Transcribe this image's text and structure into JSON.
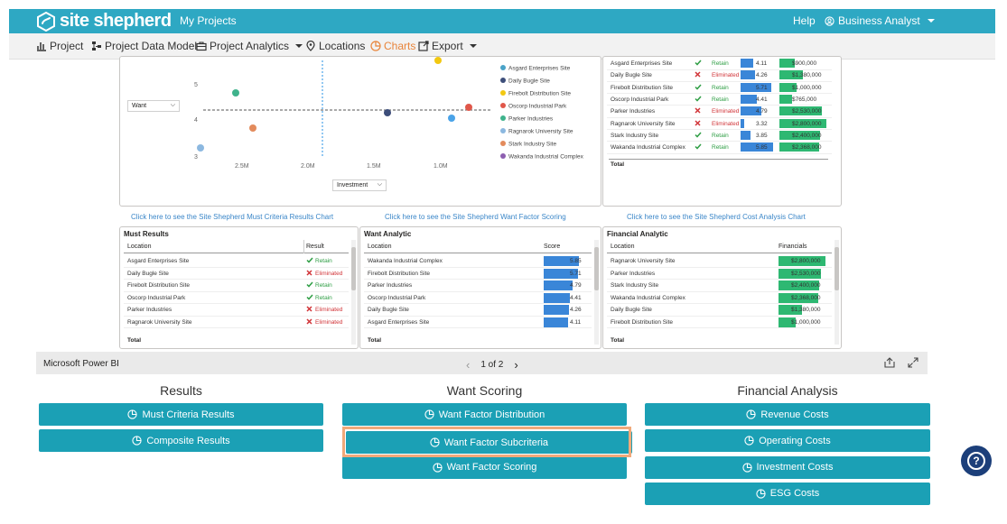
{
  "header": {
    "brand": "site shepherd",
    "my_projects": "My Projects",
    "help": "Help",
    "user": "Business Analyst"
  },
  "nav": {
    "items": [
      {
        "label": "Project",
        "icon": "bar-chart-icon"
      },
      {
        "label": "Project Data Model",
        "icon": "data-model-icon"
      },
      {
        "label": "Project Analytics",
        "icon": "briefcase-icon",
        "dropdown": true
      },
      {
        "label": "Locations",
        "icon": "map-pin-icon"
      },
      {
        "label": "Charts",
        "icon": "pie-chart-icon",
        "active": true
      },
      {
        "label": "Export",
        "icon": "external-link-icon",
        "dropdown": true
      }
    ]
  },
  "scatter": {
    "y_selector": "Want",
    "x_selector": "Investment",
    "y_ticks": [
      "5",
      "4",
      "3"
    ],
    "x_ticks": [
      "2.5M",
      "2.0M",
      "1.5M",
      "1.0M"
    ],
    "legend": [
      {
        "name": "Asgard Enterprises Site",
        "color": "#4aa3c8"
      },
      {
        "name": "Daily Bugle Site",
        "color": "#3d4e7a"
      },
      {
        "name": "Firebolt Distribution Site",
        "color": "#f2c811"
      },
      {
        "name": "Oscorp Industrial Park",
        "color": "#e0574a"
      },
      {
        "name": "Parker Industries",
        "color": "#3fb38c"
      },
      {
        "name": "Ragnarok University Site",
        "color": "#8cb8e0"
      },
      {
        "name": "Stark Industry Site",
        "color": "#e38b5c"
      },
      {
        "name": "Wakanda Industrial Complex",
        "color": "#8d5fb0"
      }
    ]
  },
  "top_right": {
    "rows": [
      {
        "location": "Asgard Enterprises Site",
        "status": "Retain",
        "score": "4.11",
        "fin": "$900,000"
      },
      {
        "location": "Daily Bugle Site",
        "status": "Eliminated",
        "score": "4.26",
        "fin": "$1,380,000"
      },
      {
        "location": "Firebolt Distribution Site",
        "status": "Retain",
        "score": "5.71",
        "fin": "$1,000,000"
      },
      {
        "location": "Oscorp Industrial Park",
        "status": "Retain",
        "score": "4.41",
        "fin": "$765,000"
      },
      {
        "location": "Parker Industries",
        "status": "Eliminated",
        "score": "4.79",
        "fin": "$2,530,000"
      },
      {
        "location": "Ragnarok University Site",
        "status": "Eliminated",
        "score": "3.32",
        "fin": "$2,800,000"
      },
      {
        "location": "Stark Industry Site",
        "status": "Retain",
        "score": "3.85",
        "fin": "$2,400,000"
      },
      {
        "location": "Wakanda Industrial Complex",
        "status": "Retain",
        "score": "5.85",
        "fin": "$2,368,000"
      }
    ],
    "total": "Total"
  },
  "links": {
    "must": "Click here to see the Site Shepherd Must Criteria Results Chart",
    "want": "Click here to see the Site Shepherd Want Factor Scoring",
    "cost": "Click here to see the Site Shepherd Cost Analysis Chart"
  },
  "must_results": {
    "title": "Must Results",
    "col_location": "Location",
    "col_result": "Result",
    "rows": [
      {
        "location": "Asgard Enterprises Site",
        "result": "Retain"
      },
      {
        "location": "Daily Bugle Site",
        "result": "Eliminated"
      },
      {
        "location": "Firebolt Distribution Site",
        "result": "Retain"
      },
      {
        "location": "Oscorp Industrial Park",
        "result": "Retain"
      },
      {
        "location": "Parker Industries",
        "result": "Eliminated"
      },
      {
        "location": "Ragnarok University Site",
        "result": "Eliminated"
      }
    ],
    "total": "Total"
  },
  "want_analytic": {
    "title": "Want Analytic",
    "col_location": "Location",
    "col_score": "Score",
    "rows": [
      {
        "location": "Wakanda Industrial Complex",
        "score": "5.85"
      },
      {
        "location": "Firebolt Distribution Site",
        "score": "5.71"
      },
      {
        "location": "Parker Industries",
        "score": "4.79"
      },
      {
        "location": "Oscorp Industrial Park",
        "score": "4.41"
      },
      {
        "location": "Daily Bugle Site",
        "score": "4.26"
      },
      {
        "location": "Asgard Enterprises Site",
        "score": "4.11"
      }
    ],
    "total": "Total"
  },
  "financial_analytic": {
    "title": "Financial Analytic",
    "col_location": "Location",
    "col_fin": "Financials",
    "rows": [
      {
        "location": "Ragnarok University Site",
        "fin": "$2,800,000"
      },
      {
        "location": "Parker Industries",
        "fin": "$2,530,000"
      },
      {
        "location": "Stark Industry Site",
        "fin": "$2,400,000"
      },
      {
        "location": "Wakanda Industrial Complex",
        "fin": "$2,368,000"
      },
      {
        "location": "Daily Bugle Site",
        "fin": "$1,380,000"
      },
      {
        "location": "Firebolt Distribution Site",
        "fin": "$1,000,000"
      }
    ],
    "total": "Total"
  },
  "powerbi": {
    "label": "Microsoft Power BI",
    "page": "1 of 2"
  },
  "sections": {
    "results": {
      "title": "Results",
      "buttons": [
        "Must Criteria Results",
        "Composite Results"
      ]
    },
    "want": {
      "title": "Want Scoring",
      "buttons": [
        "Want Factor Distribution",
        "Want Factor Subcriteria",
        "Want Factor Scoring"
      ]
    },
    "financial": {
      "title": "Financial Analysis",
      "buttons": [
        "Revenue Costs",
        "Operating Costs",
        "Investment Costs",
        "ESG Costs"
      ]
    }
  },
  "colors": {
    "header": "#2ea8c3",
    "button": "#1ba0b5",
    "active_nav": "#e8843a",
    "retain": "#2e9e44",
    "eliminated": "#d13438",
    "score_bar": "#3a86d8",
    "fin_bar": "#2eb872"
  }
}
